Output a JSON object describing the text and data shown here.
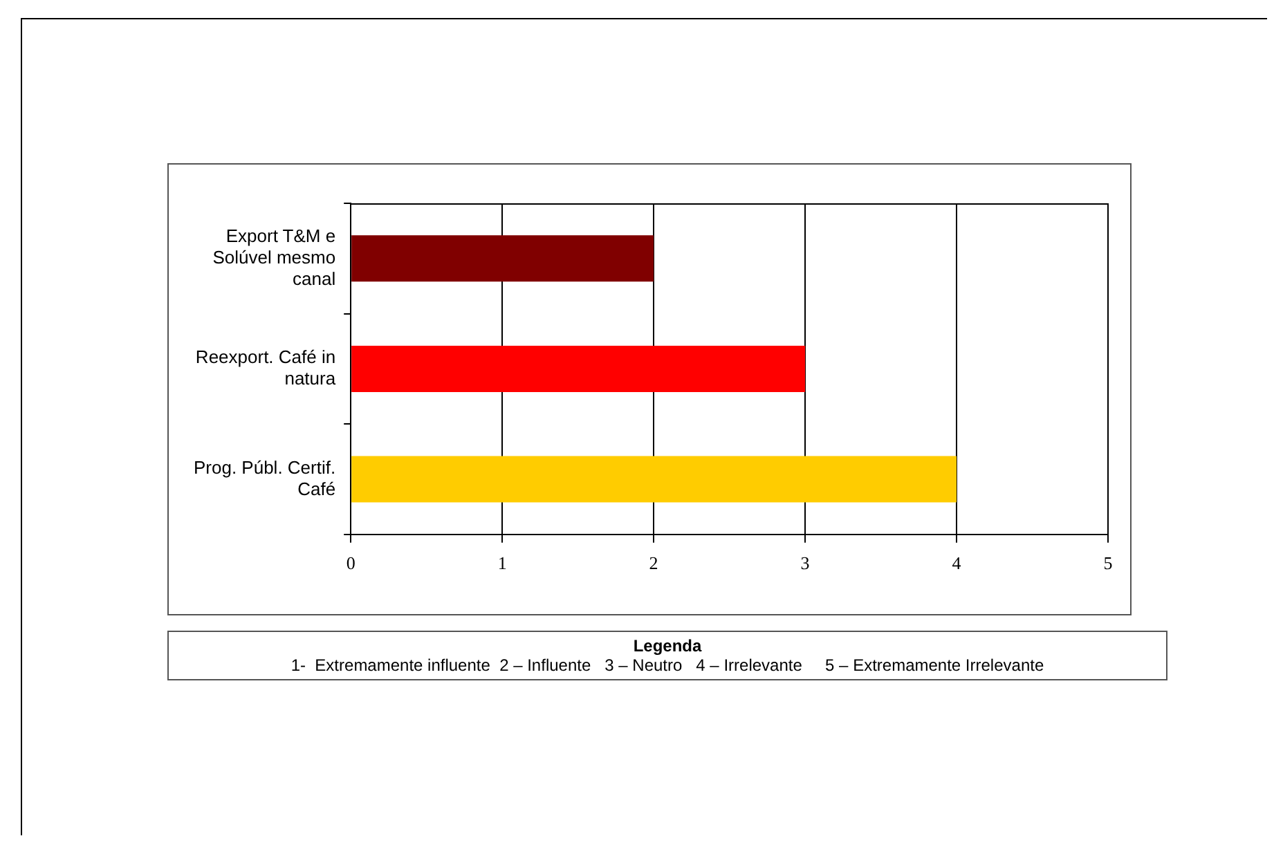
{
  "chart_data": {
    "type": "bar",
    "orientation": "horizontal",
    "categories": [
      "Export T&M e Solúvel mesmo canal",
      "Reexport. Café in natura",
      "Prog. Públ. Certif. Café"
    ],
    "values": [
      2,
      3,
      4
    ],
    "colors": [
      "#800000",
      "#ff0000",
      "#ffcc00"
    ],
    "xlim": [
      0,
      5
    ],
    "xticks": [
      0,
      1,
      2,
      3,
      4,
      5
    ],
    "grid": "x",
    "annotations": [
      "Legenda",
      "1-  Extremamente influente  2 – Influente   3 – Neutro   4 – Irrelevante     5 – Extremamente Irrelevante"
    ]
  }
}
